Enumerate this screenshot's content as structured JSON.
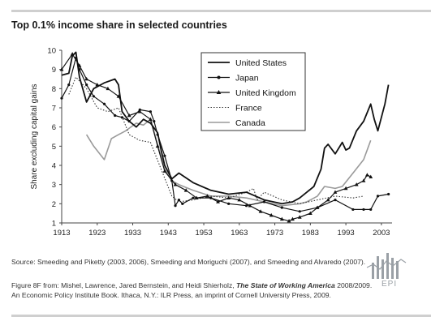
{
  "title": "Top 0.1% income share in selected countries",
  "source": "Source: Smeeding and Piketty (2003, 2006), Smeeding and Moriguchi (2007), and Smeeding and Alvaredo (2007).",
  "figure_note": {
    "line1_prefix": "Figure 8F from: Mishel, Lawrence, Jared Bernstein, and Heidi Shierholz, ",
    "book_title": "The State of Working America",
    "line1_suffix": " 2008/2009.",
    "line2": "An Economic Policy Institute Book. Ithaca, N.Y.: ILR Press, an imprint of Cornell University Press, 2009."
  },
  "logo_text": "EPI",
  "colors": {
    "us": "#111111",
    "japan": "#111111",
    "uk": "#111111",
    "france": "#333333",
    "canada": "#9a9a9a",
    "rule": "#cfcfcf",
    "logo": "#9aa0a6"
  },
  "chart_data": {
    "type": "line",
    "ylabel": "Share excluding capital gains",
    "xlim": [
      1913,
      2006
    ],
    "ylim": [
      1,
      10
    ],
    "x_ticks": [
      1913,
      1923,
      1933,
      1943,
      1953,
      1963,
      1973,
      1983,
      1993,
      2003
    ],
    "y_ticks": [
      1,
      2,
      3,
      4,
      5,
      6,
      7,
      8,
      9,
      10
    ],
    "grid": false,
    "legend_position": "top-center",
    "series": [
      {
        "name": "United States",
        "style": "solid-thick",
        "x": [
          1913,
          1915,
          1916,
          1917,
          1918,
          1920,
          1922,
          1925,
          1928,
          1929,
          1930,
          1932,
          1934,
          1936,
          1938,
          1940,
          1941,
          1942,
          1944,
          1946,
          1950,
          1955,
          1960,
          1965,
          1970,
          1975,
          1978,
          1980,
          1982,
          1984,
          1986,
          1987,
          1988,
          1990,
          1992,
          1993,
          1994,
          1996,
          1998,
          2000,
          2001,
          2002,
          2004,
          2005
        ],
        "y": [
          8.7,
          8.8,
          9.7,
          9.9,
          8.6,
          7.3,
          8.0,
          8.3,
          8.5,
          8.2,
          6.8,
          6.3,
          6.0,
          6.4,
          6.2,
          5.7,
          4.8,
          4.0,
          3.3,
          3.6,
          3.1,
          2.7,
          2.5,
          2.6,
          2.2,
          2.0,
          2.1,
          2.3,
          2.6,
          2.9,
          3.8,
          4.9,
          5.1,
          4.6,
          5.2,
          4.8,
          4.9,
          5.8,
          6.3,
          7.2,
          6.4,
          5.8,
          7.2,
          8.2
        ]
      },
      {
        "name": "Japan",
        "style": "solid-dot",
        "x": [
          1913,
          1915,
          1917,
          1918,
          1920,
          1922,
          1925,
          1928,
          1930,
          1932,
          1935,
          1938,
          1939,
          1940,
          1942,
          1944,
          1945,
          1946,
          1947,
          1950,
          1955,
          1960,
          1965,
          1970,
          1975,
          1980,
          1985,
          1990,
          1995,
          1998,
          2000,
          2002,
          2005
        ],
        "y": [
          7.5,
          8.2,
          9.6,
          9.0,
          8.2,
          7.6,
          7.2,
          6.6,
          6.5,
          6.3,
          6.9,
          6.8,
          6.3,
          5.6,
          4.5,
          3.2,
          1.9,
          2.2,
          2.0,
          2.3,
          2.3,
          2.0,
          1.9,
          2.1,
          1.8,
          1.6,
          1.8,
          2.2,
          1.7,
          1.7,
          1.7,
          2.4,
          2.5
        ]
      },
      {
        "name": "United Kingdom",
        "style": "solid-triangle",
        "x": [
          1913,
          1916,
          1918,
          1920,
          1923,
          1926,
          1929,
          1932,
          1935,
          1938,
          1940,
          1942,
          1945,
          1948,
          1951,
          1954,
          1957,
          1960,
          1963,
          1966,
          1969,
          1972,
          1975,
          1977,
          1978,
          1980,
          1983,
          1985,
          1988,
          1990,
          1993,
          1996,
          1998,
          1999,
          2000
        ],
        "y": [
          9.0,
          9.8,
          9.2,
          8.5,
          8.2,
          8.0,
          7.6,
          6.6,
          6.8,
          6.4,
          5.0,
          3.7,
          3.0,
          2.7,
          2.3,
          2.4,
          2.1,
          2.3,
          2.2,
          1.9,
          1.6,
          1.4,
          1.2,
          1.1,
          1.2,
          1.3,
          1.5,
          1.8,
          2.2,
          2.6,
          2.8,
          3.0,
          3.2,
          3.5,
          3.4
        ]
      },
      {
        "name": "France",
        "style": "dotted",
        "x": [
          1915,
          1917,
          1920,
          1923,
          1926,
          1929,
          1932,
          1935,
          1938,
          1941,
          1944,
          1946,
          1950,
          1955,
          1960,
          1965,
          1967,
          1968,
          1970,
          1975,
          1980,
          1985,
          1990,
          1995,
          1998
        ],
        "y": [
          7.7,
          8.6,
          8.0,
          7.0,
          6.8,
          7.0,
          5.6,
          5.3,
          5.2,
          3.8,
          2.4,
          2.1,
          2.2,
          2.4,
          2.3,
          2.6,
          2.8,
          2.2,
          2.6,
          2.2,
          2.0,
          2.2,
          2.4,
          2.3,
          2.4
        ]
      },
      {
        "name": "Canada",
        "style": "solid-gray",
        "x": [
          1920,
          1922,
          1925,
          1927,
          1929,
          1931,
          1934,
          1936,
          1938,
          1940,
          1942,
          1944,
          1946,
          1950,
          1955,
          1960,
          1965,
          1970,
          1975,
          1980,
          1982,
          1985,
          1987,
          1990,
          1992,
          1995,
          1998,
          2000
        ],
        "y": [
          5.6,
          5.0,
          4.3,
          5.4,
          5.6,
          5.8,
          6.2,
          6.1,
          6.4,
          5.1,
          3.8,
          3.2,
          3.0,
          2.7,
          2.4,
          2.4,
          2.3,
          2.1,
          1.9,
          2.0,
          2.1,
          2.4,
          2.9,
          2.8,
          2.9,
          3.6,
          4.3,
          5.3
        ]
      }
    ]
  }
}
